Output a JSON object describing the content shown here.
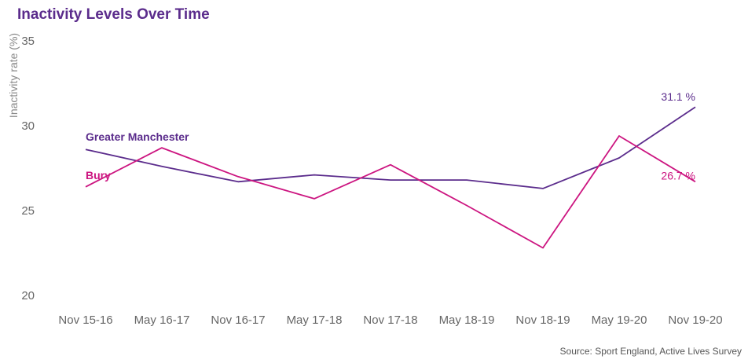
{
  "chart_data": {
    "type": "line",
    "title": "Inactivity Levels Over Time",
    "ylabel": "Inactivity rate (%)",
    "xlabel": "",
    "ylim": [
      20,
      35
    ],
    "yticks": [
      20,
      25,
      30,
      35
    ],
    "categories": [
      "Nov 15-16",
      "May 16-17",
      "Nov 16-17",
      "May 17-18",
      "Nov 17-18",
      "May 18-19",
      "Nov 18-19",
      "May 19-20",
      "Nov 19-20"
    ],
    "series": [
      {
        "name": "Greater Manchester",
        "color": "#5b2c8c",
        "values": [
          28.6,
          27.6,
          26.7,
          27.1,
          26.8,
          26.8,
          26.3,
          28.1,
          31.1
        ],
        "end_label": "31.1 %"
      },
      {
        "name": "Bury",
        "color": "#cc1580",
        "values": [
          26.4,
          28.7,
          27.0,
          25.7,
          27.7,
          25.3,
          22.8,
          29.4,
          26.7
        ],
        "end_label": "26.7 %"
      }
    ],
    "grid": false,
    "legend": "inline-left",
    "source": "Source: Sport England, Active Lives Survey"
  }
}
